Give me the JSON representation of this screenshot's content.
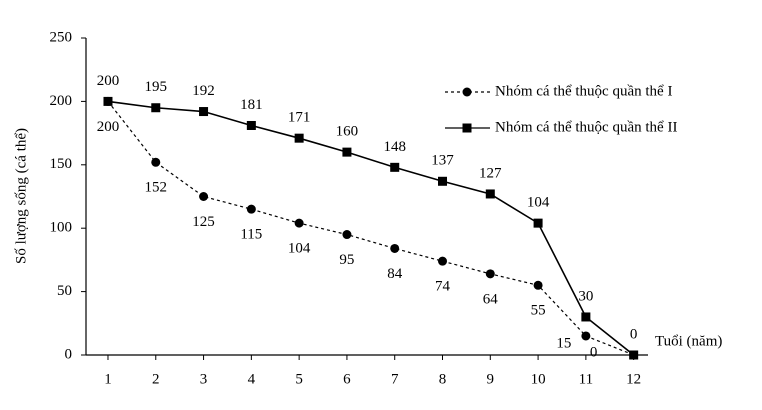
{
  "chart_data": {
    "type": "line",
    "y_label": "Số lượng sống (cá thể)",
    "x_label": "Tuổi (năm)",
    "x": [
      1,
      2,
      3,
      4,
      5,
      6,
      7,
      8,
      9,
      10,
      11,
      12
    ],
    "xlim": [
      0.54,
      12.3
    ],
    "xticks": [
      1,
      2,
      3,
      4,
      5,
      6,
      7,
      8,
      9,
      10,
      11,
      12
    ],
    "ylim": [
      0,
      250
    ],
    "yticks": [
      0,
      50,
      100,
      150,
      200,
      250
    ],
    "legend": "upper right",
    "series": [
      {
        "name": "Nhóm cá thể thuộc quần thể I",
        "color": "#000000",
        "linestyle": "dashed",
        "marker": "circle",
        "values": [
          200,
          152,
          125,
          115,
          104,
          95,
          84,
          74,
          64,
          55,
          15,
          0
        ]
      },
      {
        "name": "Nhóm cá thể thuộc quần thể II",
        "color": "#000000",
        "linestyle": "solid",
        "marker": "square",
        "values": [
          200,
          195,
          192,
          181,
          171,
          160,
          148,
          137,
          127,
          104,
          30,
          0
        ]
      }
    ]
  }
}
